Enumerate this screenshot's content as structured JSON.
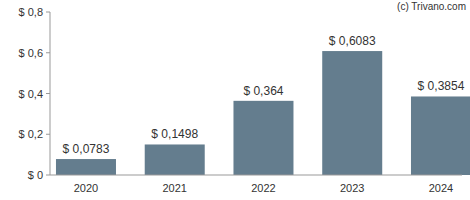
{
  "chart_data": {
    "type": "bar",
    "annotation": "(c) Trivano.com",
    "categories": [
      "2020",
      "2021",
      "2022",
      "2023",
      "2024"
    ],
    "values": [
      0.0783,
      0.1498,
      0.364,
      0.6083,
      0.3854
    ],
    "value_labels": [
      "$ 0,0783",
      "$ 0,1498",
      "$ 0,364",
      "$ 0,6083",
      "$ 0,3854"
    ],
    "data_labels": true,
    "color": "#647d8e",
    "ylim": [
      0,
      0.8
    ],
    "yticks": [
      {
        "value": 0,
        "label": "$ 0"
      },
      {
        "value": 0.2,
        "label": "$ 0,2"
      },
      {
        "value": 0.4,
        "label": "$ 0,4"
      },
      {
        "value": 0.6,
        "label": "$ 0,6"
      },
      {
        "value": 0.8,
        "label": "$ 0,8"
      }
    ],
    "grid": false
  }
}
